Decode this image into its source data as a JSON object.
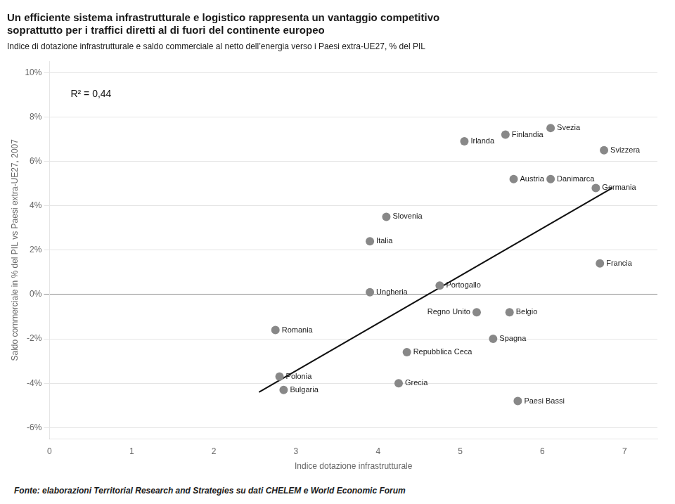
{
  "chart_data": {
    "type": "scatter",
    "title": [
      "Un efficiente sistema infrastrutturale e logistico rappresenta un vantaggio competitivo",
      "soprattutto per i traffici diretti al di fuori del continente europeo"
    ],
    "subtitle": "Indice di dotazione infrastrutturale e saldo commerciale al netto dell’energia verso i Paesi extra-UE27, % del PIL",
    "xlabel": "Indice dotazione infrastrutturale",
    "ylabel": "Saldo commerciale in % del PIL vs Paesi extra-UE27, 2007",
    "annotation": "R² = 0,44",
    "footer": "Fonte: elaborazioni Territorial Research and Strategies su dati CHELEM  e World Economic Forum",
    "xlim": [
      0,
      7.4
    ],
    "ylim": [
      -0.065,
      0.105
    ],
    "xticks": [
      0,
      1,
      2,
      3,
      4,
      5,
      6,
      7
    ],
    "yticks": [
      {
        "value": -0.06,
        "label": "-6%"
      },
      {
        "value": -0.04,
        "label": "-4%"
      },
      {
        "value": -0.02,
        "label": "-2%"
      },
      {
        "value": 0.0,
        "label": "0%"
      },
      {
        "value": 0.02,
        "label": "2%"
      },
      {
        "value": 0.04,
        "label": "4%"
      },
      {
        "value": 0.06,
        "label": "6%"
      },
      {
        "value": 0.08,
        "label": "8%"
      },
      {
        "value": 0.1,
        "label": "10%"
      }
    ],
    "grid": "y",
    "series": [
      {
        "type": "scatter",
        "color": "#888888",
        "labels": [
          "Finlandia",
          "Svezia",
          "Irlanda",
          "Svizzera",
          "Austria",
          "Danimarca",
          "Germania",
          "Slovenia",
          "Italia",
          "Francia",
          "Portogallo",
          "Ungheria",
          "Regno Unito",
          "Belgio",
          "Spagna",
          "Romania",
          "Repubblica Ceca",
          "Polonia",
          "Bulgaria",
          "Grecia",
          "Paesi Bassi"
        ],
        "x": [
          5.55,
          6.1,
          5.05,
          6.75,
          5.65,
          6.1,
          6.65,
          4.1,
          3.9,
          6.7,
          4.75,
          3.9,
          5.2,
          5.6,
          5.4,
          2.75,
          4.35,
          2.8,
          2.85,
          4.25,
          5.7
        ],
        "values": [
          0.072,
          0.075,
          0.069,
          0.065,
          0.052,
          0.052,
          0.048,
          0.035,
          0.024,
          0.014,
          0.004,
          0.001,
          -0.008,
          -0.008,
          -0.02,
          -0.016,
          -0.026,
          -0.037,
          -0.043,
          -0.04,
          -0.048
        ]
      },
      {
        "type": "line",
        "color": "#111111",
        "x": [
          2.55,
          6.85
        ],
        "values": [
          -0.044,
          0.048
        ]
      }
    ]
  }
}
